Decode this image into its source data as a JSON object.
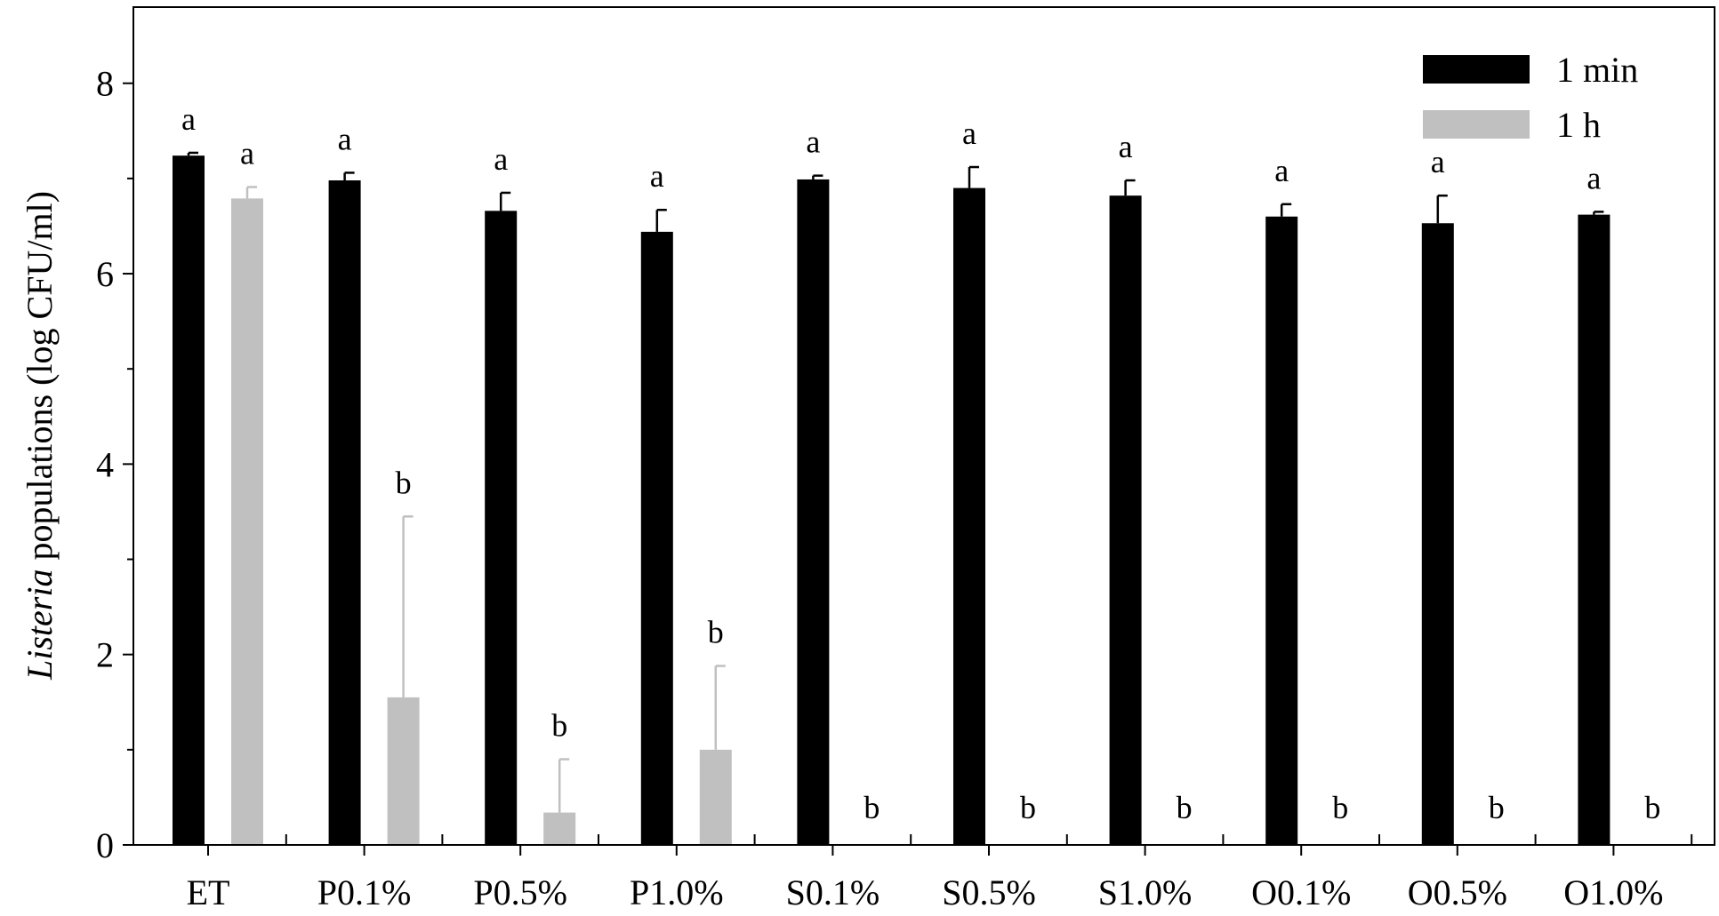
{
  "chart_data": {
    "type": "bar",
    "title": "",
    "xlabel": "",
    "ylabel_italic": "Listeria",
    "ylabel_rest": " populations (log CFU/ml)",
    "ylim": [
      0,
      8.8
    ],
    "yticks": [
      0,
      2,
      4,
      6,
      8
    ],
    "grid": false,
    "legend_position": "top-right",
    "categories": [
      "ET",
      "P0.1%",
      "P0.5%",
      "P1.0%",
      "S0.1%",
      "S0.5%",
      "S1.0%",
      "O0.1%",
      "O0.5%",
      "O1.0%"
    ],
    "series": [
      {
        "name": "1 min",
        "color": "#000000",
        "values": [
          7.24,
          6.98,
          6.66,
          6.44,
          6.99,
          6.9,
          6.82,
          6.6,
          6.53,
          6.62
        ],
        "errors": [
          0.03,
          0.08,
          0.19,
          0.23,
          0.04,
          0.22,
          0.16,
          0.13,
          0.29,
          0.03
        ],
        "sig_labels": [
          "a",
          "a",
          "a",
          "a",
          "a",
          "a",
          "a",
          "a",
          "a",
          "a"
        ]
      },
      {
        "name": "1 h",
        "color": "#c0c0c0",
        "values": [
          6.79,
          1.55,
          0.34,
          1.0,
          0,
          0,
          0,
          0,
          0,
          0
        ],
        "errors": [
          0.12,
          1.9,
          0.56,
          0.88,
          0,
          0,
          0,
          0,
          0,
          0
        ],
        "sig_labels": [
          "a",
          "b",
          "b",
          "b",
          "b",
          "b",
          "b",
          "b",
          "b",
          "b"
        ]
      }
    ]
  }
}
